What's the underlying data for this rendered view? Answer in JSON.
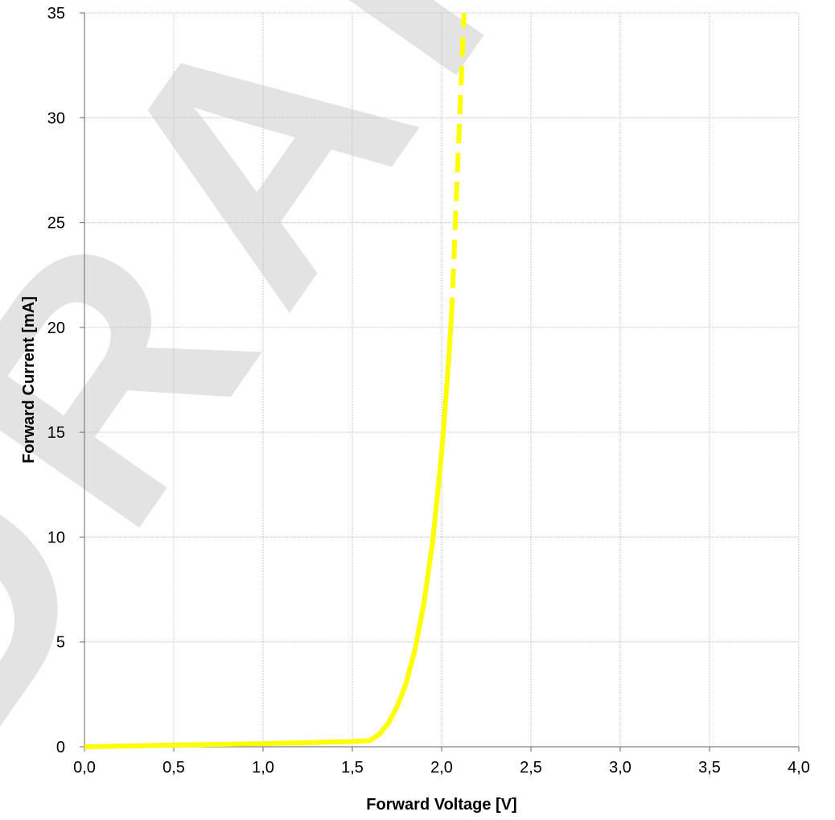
{
  "chart_data": {
    "type": "line",
    "xlabel": "Forward Voltage [V]",
    "ylabel": "Forward Current [mA]",
    "xlim": [
      0,
      4.0
    ],
    "ylim": [
      0,
      35
    ],
    "x_ticks": [
      0,
      0.5,
      1.0,
      1.5,
      2.0,
      2.5,
      3.0,
      3.5,
      4.0
    ],
    "x_tick_labels": [
      "0,0",
      "0,5",
      "1,0",
      "1,5",
      "2,0",
      "2,5",
      "3,0",
      "3,5",
      "4,0"
    ],
    "y_ticks": [
      0,
      5,
      10,
      15,
      20,
      25,
      30,
      35
    ],
    "y_tick_labels": [
      "0",
      "5",
      "10",
      "15",
      "20",
      "25",
      "30",
      "35"
    ],
    "grid": true,
    "legend": "none",
    "series": [
      {
        "style": "solid",
        "color": "#ffff00",
        "x": [
          0.0,
          0.5,
          1.0,
          1.5,
          1.6,
          1.65,
          1.7,
          1.75,
          1.8,
          1.85,
          1.9,
          1.95,
          2.0,
          2.02,
          2.04,
          2.055
        ],
        "y": [
          0.0,
          0.08,
          0.15,
          0.25,
          0.3,
          0.6,
          1.1,
          1.9,
          3.0,
          4.6,
          6.8,
          9.8,
          14.0,
          16.2,
          18.5,
          20.5
        ]
      },
      {
        "style": "dashed",
        "color": "#ffff00",
        "x": [
          2.055,
          2.07,
          2.085,
          2.1,
          2.115,
          2.125
        ],
        "y": [
          20.5,
          23.5,
          26.8,
          29.8,
          32.8,
          35.0
        ]
      }
    ],
    "watermark": {
      "text": "DRAFT",
      "color": "#e3e3e3"
    }
  }
}
